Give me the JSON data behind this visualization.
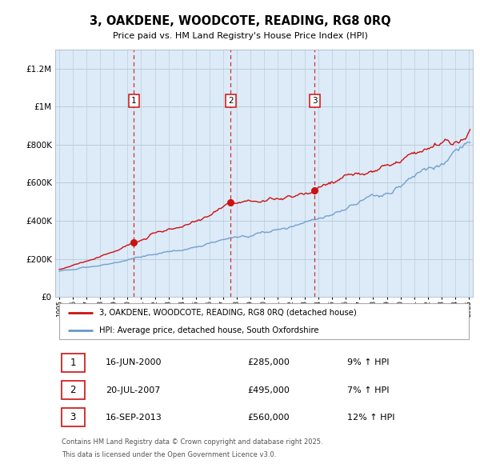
{
  "title": "3, OAKDENE, WOODCOTE, READING, RG8 0RQ",
  "subtitle": "Price paid vs. HM Land Registry's House Price Index (HPI)",
  "overall_bg": "#f5f5f5",
  "plot_bg_color": "#ddeaf7",
  "grid_color": "#c8d8e8",
  "red_line_color": "#cc1111",
  "blue_line_color": "#6699cc",
  "ylim": [
    0,
    1300000
  ],
  "yticks": [
    0,
    200000,
    400000,
    600000,
    800000,
    1000000,
    1200000
  ],
  "xstart": 1995,
  "xend": 2025,
  "sale_dates": [
    2000.46,
    2007.55,
    2013.71
  ],
  "sale_prices": [
    285000,
    495000,
    560000
  ],
  "sale_labels": [
    "1",
    "2",
    "3"
  ],
  "legend_red_label": "3, OAKDENE, WOODCOTE, READING, RG8 0RQ (detached house)",
  "legend_blue_label": "HPI: Average price, detached house, South Oxfordshire",
  "table_rows": [
    {
      "num": "1",
      "date": "16-JUN-2000",
      "price": "£285,000",
      "hpi": "9% ↑ HPI"
    },
    {
      "num": "2",
      "date": "20-JUL-2007",
      "price": "£495,000",
      "hpi": "7% ↑ HPI"
    },
    {
      "num": "3",
      "date": "16-SEP-2013",
      "price": "£560,000",
      "hpi": "12% ↑ HPI"
    }
  ],
  "footer_line1": "Contains HM Land Registry data © Crown copyright and database right 2025.",
  "footer_line2": "This data is licensed under the Open Government Licence v3.0."
}
